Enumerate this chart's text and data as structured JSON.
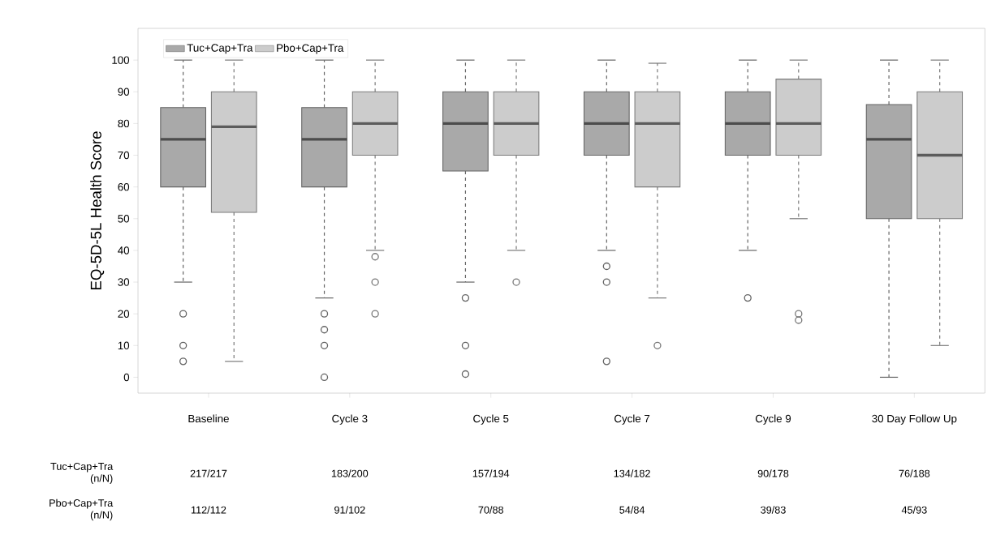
{
  "chart_data": {
    "type": "box",
    "ylabel": "EQ-5D-5L Health Score",
    "categories": [
      "Baseline",
      "Cycle 3",
      "Cycle 5",
      "Cycle 7",
      "Cycle 9",
      "30 Day Follow Up"
    ],
    "ylim": [
      -5,
      110
    ],
    "yticks": [
      0,
      10,
      20,
      30,
      40,
      50,
      60,
      70,
      80,
      90,
      100
    ],
    "legend": "top left",
    "marker": "circle",
    "line_style": "dashed",
    "series": [
      {
        "name": "Tuc+Cap+Tra",
        "color": "#a9a9a9",
        "boxes": [
          {
            "low": 30,
            "q1": 60,
            "median": 75,
            "q3": 85,
            "high": 100,
            "outliers": [
              20,
              10,
              5
            ]
          },
          {
            "low": 25,
            "q1": 60,
            "median": 75,
            "q3": 85,
            "high": 100,
            "outliers": [
              20,
              15,
              10,
              0
            ]
          },
          {
            "low": 30,
            "q1": 65,
            "median": 80,
            "q3": 90,
            "high": 100,
            "outliers": [
              25,
              10,
              1
            ]
          },
          {
            "low": 40,
            "q1": 70,
            "median": 80,
            "q3": 90,
            "high": 100,
            "outliers": [
              35,
              30,
              5
            ]
          },
          {
            "low": 40,
            "q1": 70,
            "median": 80,
            "q3": 90,
            "high": 100,
            "outliers": [
              25
            ]
          },
          {
            "low": 0,
            "q1": 50,
            "median": 75,
            "q3": 86,
            "high": 100
          }
        ]
      },
      {
        "name": "Pbo+Cap+Tra",
        "color": "#cccccc",
        "boxes": [
          {
            "low": 5,
            "q1": 52,
            "median": 79,
            "q3": 90,
            "high": 100
          },
          {
            "low": 40,
            "q1": 70,
            "median": 80,
            "q3": 90,
            "high": 100,
            "outliers": [
              38,
              30,
              20
            ]
          },
          {
            "low": 40,
            "q1": 70,
            "median": 80,
            "q3": 90,
            "high": 100,
            "outliers": [
              30
            ]
          },
          {
            "low": 25,
            "q1": 60,
            "median": 80,
            "q3": 90,
            "high": 99,
            "outliers": [
              10
            ]
          },
          {
            "low": 50,
            "q1": 70,
            "median": 80,
            "q3": 94,
            "high": 100,
            "outliers": [
              20,
              18
            ]
          },
          {
            "low": 10,
            "q1": 50,
            "median": 70,
            "q3": 90,
            "high": 100
          }
        ]
      }
    ],
    "annotations": [
      "Tuc+Cap+Tra (n/N)",
      "217/217",
      "183/200",
      "157/194",
      "134/182",
      "90/178",
      "76/188",
      "Pbo+Cap+Tra (n/N)",
      "112/112",
      "91/102",
      "70/88",
      "54/84",
      "39/83",
      "45/93"
    ]
  }
}
